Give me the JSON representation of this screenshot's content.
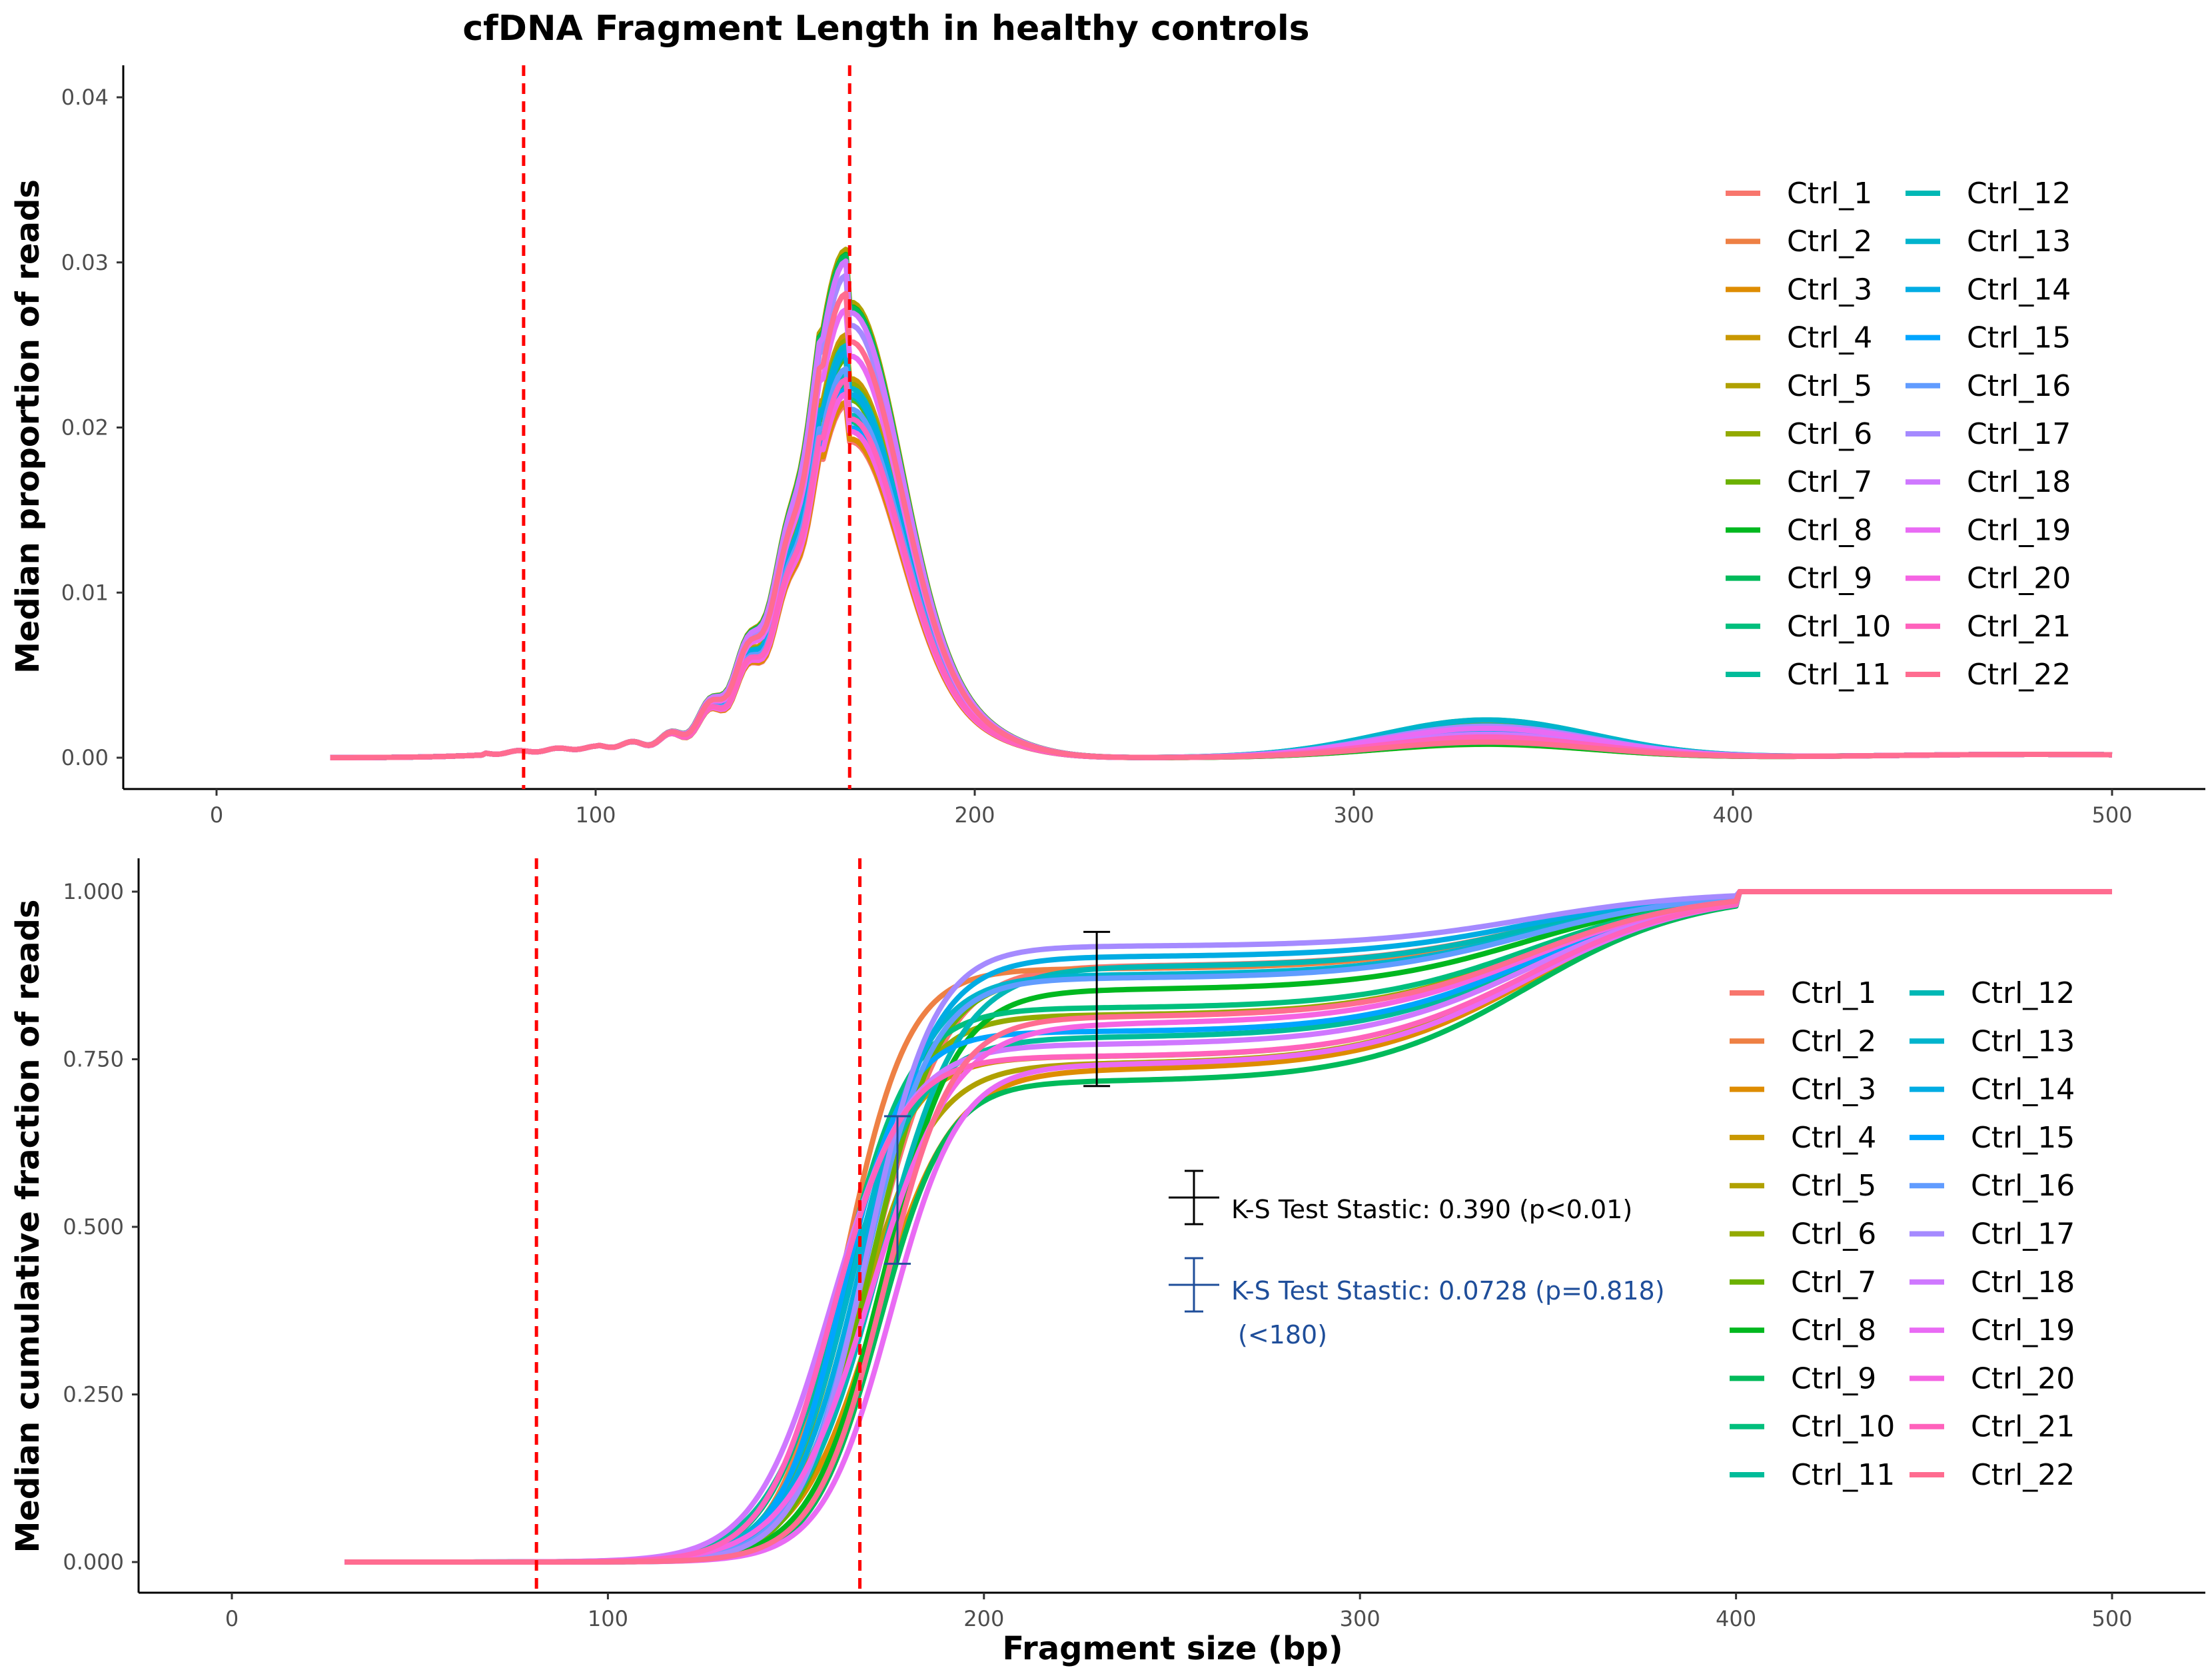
{
  "chart_data": {
    "title": "cfDNA Fragment Length in healthy controls",
    "xlabel": "Fragment size (bp)",
    "series_names": [
      "Ctrl_1",
      "Ctrl_2",
      "Ctrl_3",
      "Ctrl_4",
      "Ctrl_5",
      "Ctrl_6",
      "Ctrl_7",
      "Ctrl_8",
      "Ctrl_9",
      "Ctrl_10",
      "Ctrl_11",
      "Ctrl_12",
      "Ctrl_13",
      "Ctrl_14",
      "Ctrl_15",
      "Ctrl_16",
      "Ctrl_17",
      "Ctrl_18",
      "Ctrl_19",
      "Ctrl_20",
      "Ctrl_21",
      "Ctrl_22"
    ],
    "series_colors": [
      "#F8766D",
      "#EE8044",
      "#DE8C00",
      "#C99800",
      "#B0A100",
      "#93AA00",
      "#6BB100",
      "#00B81F",
      "#00BA5A",
      "#00BF7D",
      "#00BC9A",
      "#00B8B5",
      "#00B4CD",
      "#00ACE3",
      "#00A5FF",
      "#619CFF",
      "#A58AFF",
      "#CF78FF",
      "#E96BF4",
      "#F564E3",
      "#FF62BC",
      "#FF6C90"
    ],
    "charts": [
      {
        "type": "line",
        "ylabel": "Median proportion of reads",
        "xlim": [
          0,
          500
        ],
        "ylim": [
          0,
          0.04
        ],
        "xticks": [
          0,
          100,
          200,
          300,
          400,
          500
        ],
        "yticks": [
          0,
          0.01,
          0.02,
          0.03,
          0.04
        ],
        "ytick_labels": [
          "0.00",
          "0.01",
          "0.02",
          "0.03",
          "0.04"
        ],
        "xtick_labels": [
          "0",
          "100",
          "200",
          "300",
          "400",
          "500"
        ],
        "vlines": [
          81,
          167
        ],
        "vline_color": "#FF0000",
        "legend_position": "right",
        "x_range": [
          30,
          500
        ],
        "peak_x": 167,
        "peak_y_range": [
          0.019,
          0.027
        ],
        "secondary_peak_x": 335,
        "secondary_peak_y_range": [
          0.0008,
          0.0024
        ]
      },
      {
        "type": "line",
        "ylabel": "Median cumulative fraction of reads",
        "xlim": [
          0,
          500
        ],
        "ylim": [
          0,
          1
        ],
        "xticks": [
          0,
          100,
          200,
          300,
          400,
          500
        ],
        "yticks": [
          0,
          0.25,
          0.5,
          0.75,
          1.0
        ],
        "ytick_labels": [
          "0.000",
          "0.250",
          "0.500",
          "0.750",
          "1.000"
        ],
        "xtick_labels": [
          "0",
          "100",
          "200",
          "300",
          "400",
          "500"
        ],
        "vlines": [
          81,
          167
        ],
        "vline_color": "#FF0000",
        "legend_position": "right",
        "x_range": [
          30,
          500
        ],
        "plateau_at_230_range": [
          0.71,
          0.94
        ],
        "errorbars": [
          {
            "x": 230,
            "ymin": 0.71,
            "ymax": 0.94,
            "color": "#000000"
          },
          {
            "x": 177,
            "ymin": 0.445,
            "ymax": 0.665,
            "color": "#1F4E9A"
          }
        ],
        "annotations": [
          {
            "text": "K-S Test Stastic: 0.390 (p<0.01)",
            "color": "#000000"
          },
          {
            "text": "K-S Test Stastic: 0.0728 (p=0.818)",
            "color": "#1F4E9A"
          },
          {
            "text": "(<180)",
            "color": "#1F4E9A"
          }
        ]
      }
    ]
  }
}
